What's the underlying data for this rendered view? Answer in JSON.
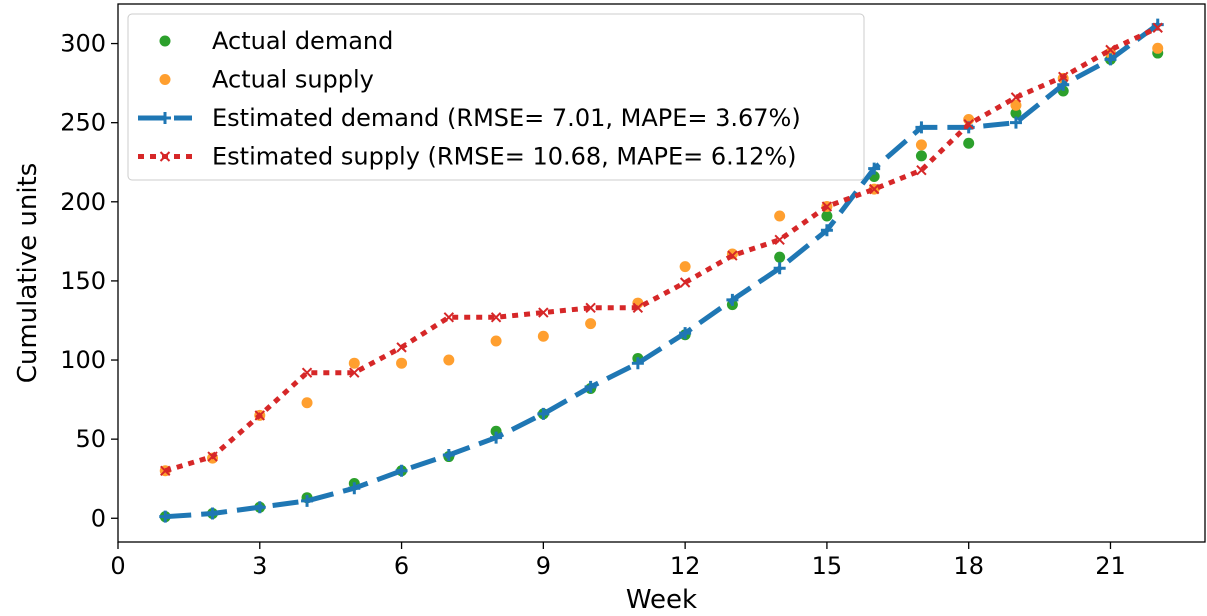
{
  "chart_data": {
    "type": "line",
    "title": "",
    "xlabel": "Week",
    "ylabel": "Cumulative units",
    "xlim": [
      0,
      23
    ],
    "ylim": [
      -15,
      325
    ],
    "xticks": [
      0,
      3,
      6,
      9,
      12,
      15,
      18,
      21
    ],
    "yticks": [
      0,
      50,
      100,
      150,
      200,
      250,
      300
    ],
    "grid": false,
    "legend_position": "top-left",
    "x": [
      1,
      2,
      3,
      4,
      5,
      6,
      7,
      8,
      9,
      10,
      11,
      12,
      13,
      14,
      15,
      16,
      17,
      18,
      19,
      20,
      21,
      22
    ],
    "series": [
      {
        "name": "Actual demand",
        "kind": "scatter",
        "color": "#2ca02c",
        "values": [
          1,
          3,
          7,
          13,
          22,
          30,
          39,
          55,
          66,
          82,
          101,
          116,
          135,
          165,
          191,
          216,
          229,
          237,
          256,
          270,
          290,
          294
        ]
      },
      {
        "name": "Actual supply",
        "kind": "scatter",
        "color": "#ff9f2f",
        "values": [
          30,
          38,
          65,
          73,
          98,
          98,
          100,
          112,
          115,
          123,
          136,
          159,
          167,
          191,
          197,
          208,
          236,
          252,
          261,
          278,
          294,
          297
        ]
      },
      {
        "name": "Estimated demand (RMSE= 7.01, MAPE= 3.67%)",
        "kind": "line",
        "line_style": "dashed",
        "marker": "plus",
        "color": "#1f77b4",
        "values": [
          1,
          3,
          7,
          11,
          19,
          30,
          40,
          51,
          66,
          83,
          98,
          117,
          138,
          158,
          182,
          221,
          247,
          247,
          250,
          274,
          290,
          312
        ]
      },
      {
        "name": "Estimated supply (RMSE= 10.68, MAPE= 6.12%)",
        "kind": "line",
        "line_style": "dotted",
        "marker": "x",
        "color": "#d62728",
        "values": [
          30,
          39,
          65,
          92,
          92,
          108,
          127,
          127,
          130,
          133,
          133,
          149,
          166,
          176,
          197,
          208,
          220,
          249,
          266,
          279,
          296,
          310
        ]
      }
    ]
  }
}
